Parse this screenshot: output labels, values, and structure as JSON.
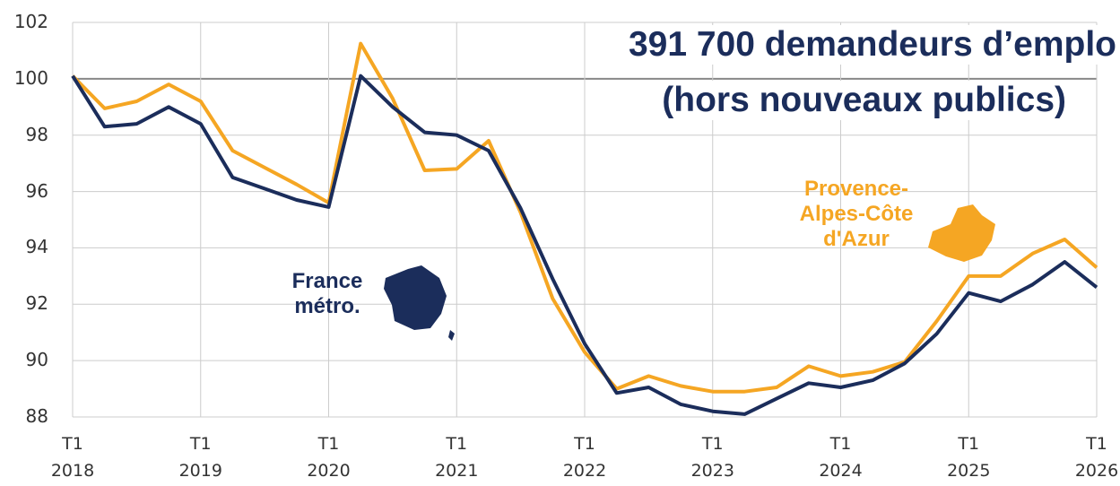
{
  "chart_data": {
    "type": "line",
    "title": "391 700 demandeurs d’emplo",
    "subtitle": "(hors nouveaux publics)",
    "categories": [
      "T1\n2018",
      null,
      null,
      null,
      "T1\n2019",
      null,
      null,
      null,
      "T1\n2020",
      null,
      null,
      null,
      "T1\n2021",
      null,
      null,
      null,
      "T1\n2022",
      null,
      null,
      null,
      "T1\n2023",
      null,
      null,
      null,
      "T1\n2024",
      null,
      null,
      null,
      "T1\n2025",
      null,
      null,
      null,
      "T1\n2026"
    ],
    "series": [
      {
        "name": "France métro.",
        "color": "#1b2d5b",
        "values": [
          100.1,
          98.3,
          98.4,
          99.0,
          98.4,
          96.5,
          96.1,
          95.7,
          95.45,
          100.1,
          99.0,
          98.1,
          98.0,
          97.45,
          95.4,
          92.9,
          90.6,
          88.85,
          89.05,
          88.45,
          88.2,
          88.1,
          88.65,
          89.2,
          89.05,
          89.3,
          89.9,
          90.95,
          92.4,
          92.1,
          92.7,
          93.5,
          92.6
        ]
      },
      {
        "name": "Provence-Alpes-Côte d'Azur",
        "color": "#f5a623",
        "values": [
          100.1,
          98.95,
          99.2,
          99.8,
          99.2,
          97.45,
          96.85,
          96.25,
          95.6,
          101.25,
          99.3,
          96.75,
          96.8,
          97.8,
          95.25,
          92.2,
          90.3,
          89.0,
          89.45,
          89.1,
          88.9,
          88.9,
          89.05,
          89.8,
          89.45,
          89.6,
          89.95,
          91.4,
          93.0,
          93.0,
          93.8,
          94.3,
          93.3
        ]
      }
    ],
    "ylim": [
      88,
      102
    ],
    "yticks": [
      88,
      90,
      92,
      94,
      96,
      98,
      100,
      102
    ],
    "grid": true
  }
}
